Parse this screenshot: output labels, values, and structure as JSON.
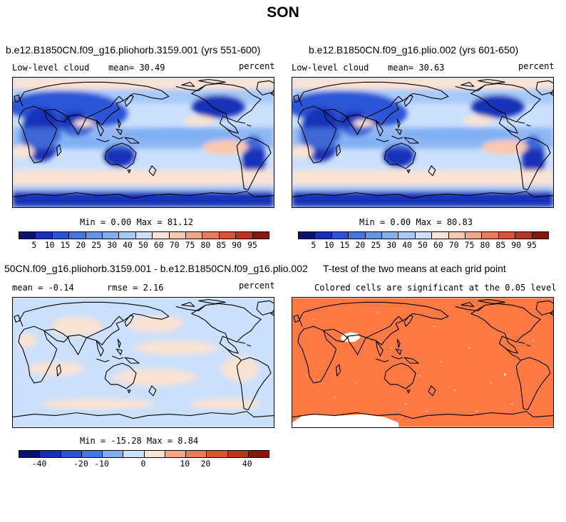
{
  "title": "SON",
  "panels": [
    {
      "title": "b.e12.B1850CN.f09_g16.pliohorb.3159.001 (yrs 551-600)",
      "left": "Low-level cloud",
      "stat": "mean=  30.49",
      "units": "percent",
      "minmax": "Min =   0.00 Max =  81.12"
    },
    {
      "title": "b.e12.B1850CN.f09_g16.plio.002 (yrs 601-650)",
      "left": "Low-level cloud",
      "stat": "mean=  30.63",
      "units": "percent",
      "minmax": "Min =   0.00 Max =  80.83"
    },
    {
      "title": "50CN.f09_g16.pliohorb.3159.001 - b.e12.B1850CN.f09_g16.plio.002",
      "left": "mean = -0.14",
      "stat": "rmse =  2.16",
      "units": "percent",
      "minmax": "Min = -15.28 Max =   8.84"
    },
    {
      "title": "T-test of the two means at each grid point",
      "note": "Colored cells are significant at the 0.05 level"
    }
  ],
  "colorbar_abs": {
    "labels": [
      "5",
      "10",
      "15",
      "20",
      "25",
      "30",
      "40",
      "50",
      "60",
      "70",
      "75",
      "80",
      "85",
      "90",
      "95"
    ],
    "colors": [
      "#08117a",
      "#1631b8",
      "#2a55d6",
      "#3f78e6",
      "#5e95ee",
      "#80b0f4",
      "#a5c9f8",
      "#cbe0fc",
      "#fbe3d3",
      "#fbc9ae",
      "#f7a583",
      "#ef7b55",
      "#dd5530",
      "#bc3518",
      "#8e1608"
    ]
  },
  "colorbar_diff": {
    "labels": [
      "-40",
      "-20",
      "-10",
      "0",
      "10",
      "20",
      "40"
    ],
    "colors": [
      "#08117a",
      "#1631b8",
      "#2a55d6",
      "#3f78e6",
      "#80b0f4",
      "#cbe0fc",
      "#fbe3d3",
      "#f7a583",
      "#ef7b55",
      "#dd5530",
      "#bc3518",
      "#8e1608"
    ]
  },
  "ttest_color": "#ff7942"
}
